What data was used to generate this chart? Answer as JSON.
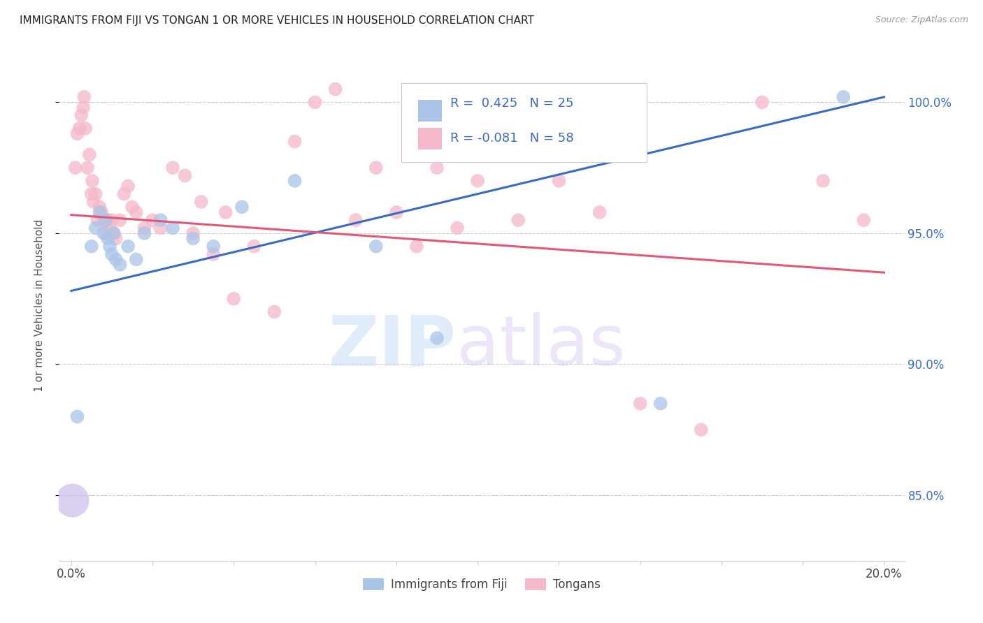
{
  "title": "IMMIGRANTS FROM FIJI VS TONGAN 1 OR MORE VEHICLES IN HOUSEHOLD CORRELATION CHART",
  "source": "Source: ZipAtlas.com",
  "ylabel": "1 or more Vehicles in Household",
  "fiji_R": 0.425,
  "fiji_N": 25,
  "tongan_R": -0.081,
  "tongan_N": 58,
  "fiji_color": "#aac4e8",
  "tongan_color": "#f5b8c8",
  "fiji_line_color": "#3a6bc4",
  "tongan_line_color": "#e05878",
  "watermark_zip": "ZIP",
  "watermark_atlas": "atlas",
  "legend_label_fiji": "Immigrants from Fiji",
  "legend_label_tongan": "Tongans",
  "fiji_scatter_x": [
    0.15,
    0.5,
    0.6,
    0.7,
    0.8,
    0.85,
    0.9,
    0.95,
    1.0,
    1.05,
    1.1,
    1.2,
    1.4,
    1.6,
    1.8,
    2.2,
    2.5,
    3.0,
    3.5,
    4.2,
    5.5,
    7.5,
    9.0,
    14.5,
    19.0
  ],
  "fiji_scatter_y": [
    88.0,
    94.5,
    95.2,
    95.8,
    95.0,
    95.5,
    94.8,
    94.5,
    94.2,
    95.0,
    94.0,
    93.8,
    94.5,
    94.0,
    95.0,
    95.5,
    95.2,
    94.8,
    94.5,
    96.0,
    97.0,
    94.5,
    91.0,
    88.5,
    100.2
  ],
  "fiji_large_x": [
    0.03
  ],
  "fiji_large_y": [
    84.8
  ],
  "tongan_scatter_x": [
    0.1,
    0.15,
    0.2,
    0.25,
    0.3,
    0.32,
    0.35,
    0.4,
    0.45,
    0.5,
    0.52,
    0.55,
    0.6,
    0.65,
    0.7,
    0.75,
    0.8,
    0.85,
    0.9,
    0.95,
    1.0,
    1.05,
    1.1,
    1.2,
    1.3,
    1.4,
    1.5,
    1.6,
    1.8,
    2.0,
    2.2,
    2.5,
    2.8,
    3.0,
    3.2,
    3.5,
    3.8,
    4.0,
    4.5,
    5.0,
    5.5,
    6.0,
    6.5,
    7.0,
    7.5,
    8.0,
    8.5,
    9.0,
    9.5,
    10.0,
    11.0,
    12.0,
    13.0,
    14.0,
    15.5,
    17.0,
    18.5,
    19.5
  ],
  "tongan_scatter_y": [
    97.5,
    98.8,
    99.0,
    99.5,
    99.8,
    100.2,
    99.0,
    97.5,
    98.0,
    96.5,
    97.0,
    96.2,
    96.5,
    95.5,
    96.0,
    95.8,
    95.5,
    95.0,
    95.5,
    95.2,
    95.5,
    95.0,
    94.8,
    95.5,
    96.5,
    96.8,
    96.0,
    95.8,
    95.2,
    95.5,
    95.2,
    97.5,
    97.2,
    95.0,
    96.2,
    94.2,
    95.8,
    92.5,
    94.5,
    92.0,
    98.5,
    100.0,
    100.5,
    95.5,
    97.5,
    95.8,
    94.5,
    97.5,
    95.2,
    97.0,
    95.5,
    97.0,
    95.8,
    88.5,
    87.5,
    100.0,
    97.0,
    95.5
  ],
  "fiji_line_x0": 0.0,
  "fiji_line_y0": 92.8,
  "fiji_line_x1": 20.0,
  "fiji_line_y1": 100.2,
  "tongan_line_x0": 0.0,
  "tongan_line_y0": 95.7,
  "tongan_line_x1": 20.0,
  "tongan_line_y1": 93.5,
  "xlim_left": -0.3,
  "xlim_right": 20.5,
  "ylim_bottom": 82.5,
  "ylim_top": 102.0,
  "y_ticks": [
    85.0,
    90.0,
    95.0,
    100.0
  ],
  "y_tick_labels": [
    "85.0%",
    "90.0%",
    "95.0%",
    "100.0%"
  ],
  "x_tick_positions": [
    0,
    2,
    4,
    6,
    8,
    10,
    12,
    14,
    16,
    18,
    20
  ]
}
